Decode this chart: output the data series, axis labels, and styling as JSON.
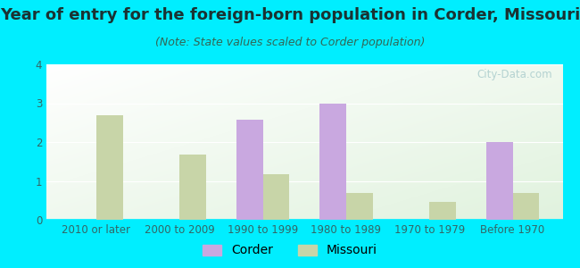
{
  "title": "Year of entry for the foreign-born population in Corder, Missouri",
  "subtitle": "(Note: State values scaled to Corder population)",
  "categories": [
    "2010 or later",
    "2000 to 2009",
    "1990 to 1999",
    "1980 to 1989",
    "1970 to 1979",
    "Before 1970"
  ],
  "corder_values": [
    0,
    0,
    2.57,
    3.0,
    0,
    2.0
  ],
  "missouri_values": [
    2.7,
    1.68,
    1.18,
    0.7,
    0.45,
    0.7
  ],
  "corder_color": "#c9a8e0",
  "missouri_color": "#c8d5a8",
  "background_outer": "#00eeff",
  "ylim": [
    0,
    4
  ],
  "yticks": [
    0,
    1,
    2,
    3,
    4
  ],
  "title_fontsize": 13,
  "subtitle_fontsize": 9,
  "legend_fontsize": 10,
  "axis_label_fontsize": 8.5,
  "watermark_text": "City-Data.com"
}
